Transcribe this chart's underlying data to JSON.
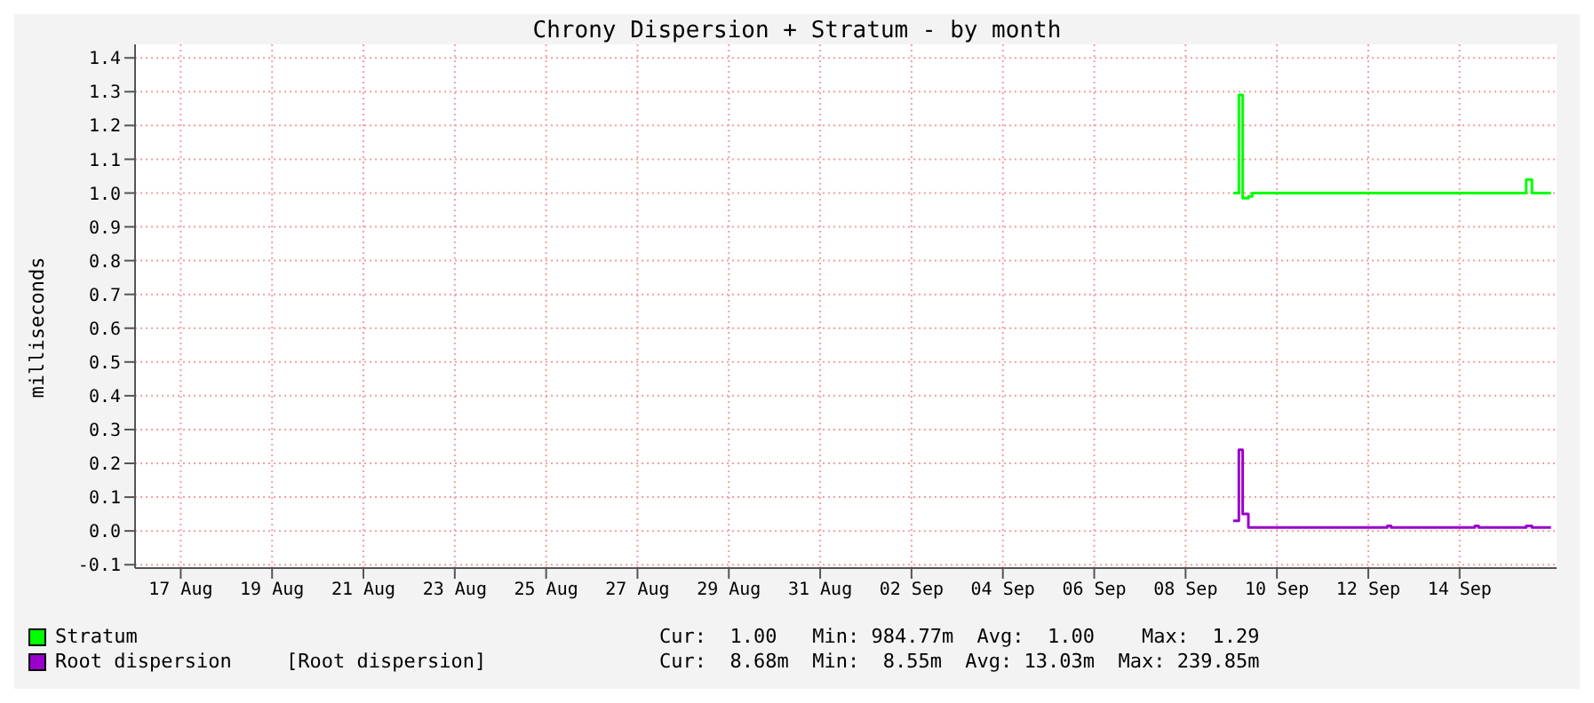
{
  "chart_data": {
    "type": "step",
    "title": "Chrony Dispersion + Stratum - by month",
    "ylabel": "milliseconds",
    "xlim": [
      "--08-16T12:00",
      "--09-16T15:00"
    ],
    "xticks": [
      {
        "value": "--08-17T12:00",
        "label": "17 Aug"
      },
      {
        "value": "--08-19T12:00",
        "label": "19 Aug"
      },
      {
        "value": "--08-21T12:00",
        "label": "21 Aug"
      },
      {
        "value": "--08-23T12:00",
        "label": "23 Aug"
      },
      {
        "value": "--08-25T12:00",
        "label": "25 Aug"
      },
      {
        "value": "--08-27T12:00",
        "label": "27 Aug"
      },
      {
        "value": "--08-29T12:00",
        "label": "29 Aug"
      },
      {
        "value": "--08-31T12:00",
        "label": "31 Aug"
      },
      {
        "value": "--09-02T12:00",
        "label": "02 Sep"
      },
      {
        "value": "--09-04T12:00",
        "label": "04 Sep"
      },
      {
        "value": "--09-06T12:00",
        "label": "06 Sep"
      },
      {
        "value": "--09-08T12:00",
        "label": "08 Sep"
      },
      {
        "value": "--09-10T12:00",
        "label": "10 Sep"
      },
      {
        "value": "--09-12T12:00",
        "label": "12 Sep"
      },
      {
        "value": "--09-14T12:00",
        "label": "14 Sep"
      }
    ],
    "ylim": [
      -0.11,
      1.44
    ],
    "yticks": [
      {
        "value": -0.1,
        "label": "-0.1"
      },
      {
        "value": 0,
        "label": "0.0"
      },
      0.1,
      0.2,
      0.3,
      0.4,
      0.5,
      0.6,
      0.7,
      0.8,
      0.9,
      {
        "value": 1,
        "label": "1.0"
      },
      1.1,
      1.2,
      1.3,
      1.4
    ],
    "grid": true,
    "legend": "bottom",
    "series": [
      {
        "name": "Stratum",
        "color": "#00ff00",
        "x": [
          "--09-09T13:00",
          "--09-09T16:00",
          "--09-09T18:00",
          "--09-09T21:00",
          "--09-09T23:00",
          "--09-15T23:00",
          "--09-16T02:00",
          "--09-16T12:00"
        ],
        "values": [
          1.0,
          1.29,
          0.985,
          0.99,
          1.0,
          1.04,
          1.0,
          1.0
        ]
      },
      {
        "name": "Root dispersion",
        "color": "#9900cc",
        "x": [
          "--09-09T13:00",
          "--09-09T16:00",
          "--09-09T18:00",
          "--09-09T21:00",
          "--09-12T22:00",
          "--09-13T00:00",
          "--09-14T20:00",
          "--09-14T22:00",
          "--09-15T23:00",
          "--09-16T02:00",
          "--09-16T12:00"
        ],
        "values": [
          0.03,
          0.24,
          0.05,
          0.01,
          0.015,
          0.01,
          0.015,
          0.01,
          0.015,
          0.01,
          0.01
        ]
      }
    ],
    "annotations": [
      "Cur:  1.00   Min: 984.77m  Avg:  1.00    Max:  1.29",
      "[Root dispersion]",
      "Cur:  8.68m  Min:  8.55m  Avg: 13.03m  Max: 239.85m"
    ]
  }
}
